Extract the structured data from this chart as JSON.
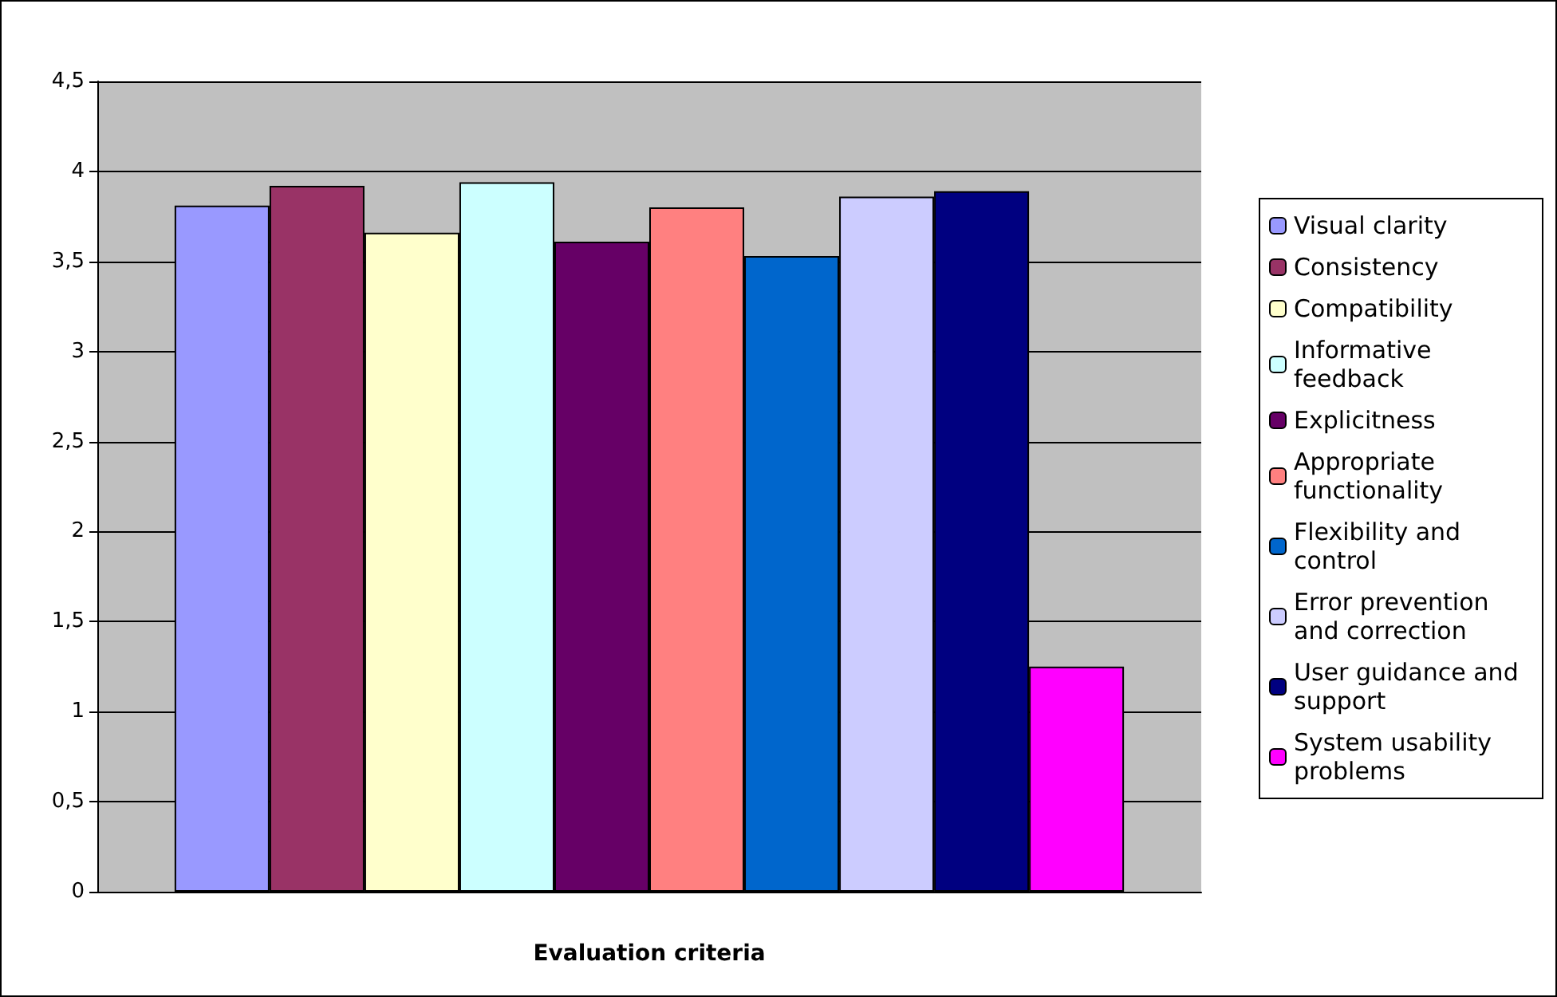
{
  "chart_data": {
    "type": "bar",
    "xlabel": "Evaluation criteria",
    "categories": [
      null
    ],
    "series": [
      {
        "name": "Visual clarity",
        "color": "#9999ff",
        "values": [
          3.81
        ]
      },
      {
        "name": "Consistency",
        "color": "#993366",
        "values": [
          3.92
        ]
      },
      {
        "name": "Compatibility",
        "color": "#ffffcc",
        "values": [
          3.66
        ]
      },
      {
        "name": "Informative feedback",
        "color": "#ccffff",
        "values": [
          3.94
        ]
      },
      {
        "name": "Explicitness",
        "color": "#660066",
        "values": [
          3.61
        ]
      },
      {
        "name": "Appropriate functionality",
        "color": "#ff8080",
        "values": [
          3.8
        ]
      },
      {
        "name": "Flexibility and control",
        "color": "#0066cc",
        "values": [
          3.53
        ]
      },
      {
        "name": "Error prevention and correction",
        "color": "#ccccff",
        "values": [
          3.86
        ]
      },
      {
        "name": "User guidance and support",
        "color": "#000080",
        "values": [
          3.89
        ]
      },
      {
        "name": "System usability problems",
        "color": "#ff00ff",
        "values": [
          1.25
        ]
      }
    ],
    "ylim": [
      0,
      4.5
    ],
    "yticks": [
      0,
      {
        "value": 0.5,
        "label": "0,5"
      },
      1,
      {
        "value": 1.5,
        "label": "1,5"
      },
      2,
      {
        "value": 2.5,
        "label": "2,5"
      },
      3,
      {
        "value": 3.5,
        "label": "3,5"
      },
      4,
      {
        "value": 4.5,
        "label": "4,5"
      }
    ],
    "grid": "y",
    "legend": "right"
  }
}
